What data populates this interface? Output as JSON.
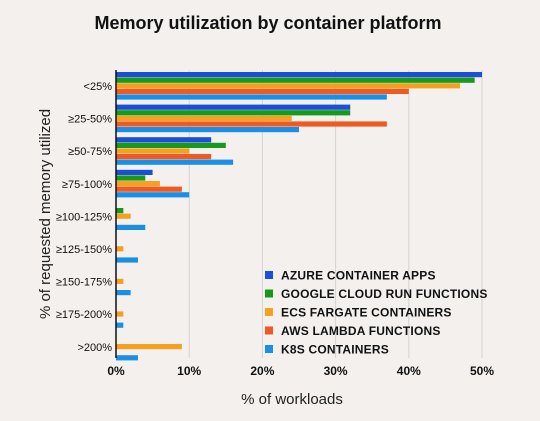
{
  "chart_data": {
    "type": "bar",
    "orientation": "horizontal",
    "title": "Memory utilization by container platform",
    "xlabel": "% of workloads",
    "ylabel": "% of requested memory utilized",
    "categories": [
      "<25%",
      "≥25-50%",
      "≥50-75%",
      "≥75-100%",
      "≥100-125%",
      "≥125-150%",
      "≥150-175%",
      "≥175-200%",
      ">200%"
    ],
    "xlim": [
      0,
      50
    ],
    "xticks": [
      0,
      10,
      20,
      30,
      40,
      50
    ],
    "xtick_labels": [
      "0%",
      "10%",
      "20%",
      "30%",
      "40%",
      "50%"
    ],
    "grid": "vertical",
    "legend_position": "bottom-right",
    "series": [
      {
        "name": "AZURE CONTAINER APPS",
        "color": "#1a4fd6",
        "values": [
          50,
          32,
          13,
          5,
          0,
          0,
          0,
          0,
          0
        ]
      },
      {
        "name": "GOOGLE CLOUD RUN FUNCTIONS",
        "color": "#159a1b",
        "values": [
          49,
          32,
          15,
          4,
          1,
          0,
          0,
          0,
          0
        ]
      },
      {
        "name": "ECS FARGATE CONTAINERS",
        "color": "#f5a021",
        "values": [
          47,
          24,
          10,
          6,
          2,
          1,
          1,
          1,
          9
        ]
      },
      {
        "name": "AWS LAMBDA FUNCTIONS",
        "color": "#ef5a23",
        "values": [
          40,
          37,
          13,
          9,
          0,
          0,
          0,
          0,
          0
        ]
      },
      {
        "name": "K8S CONTAINERS",
        "color": "#1b8fe6",
        "values": [
          37,
          25,
          16,
          10,
          4,
          3,
          2,
          1,
          3
        ]
      }
    ]
  }
}
